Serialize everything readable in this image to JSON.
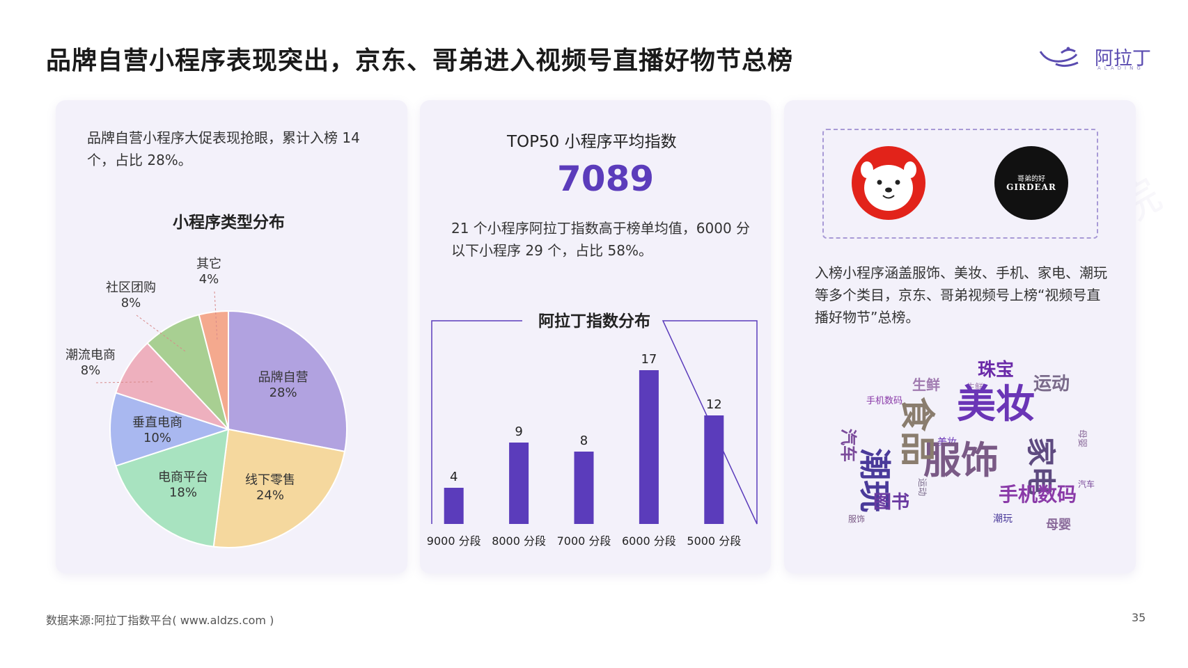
{
  "title": "品牌自营小程序表现突出，京东、哥弟进入视频号直播好物节总榜",
  "logo": {
    "name": "阿拉丁",
    "sub": "ALADING"
  },
  "panel1": {
    "text": "品牌自营小程序大促表现抢眼，累计入榜 14 个，占比 28%。",
    "pie_title": "小程序类型分布"
  },
  "panel2": {
    "header": "TOP50 小程序平均指数",
    "big_number": "7089",
    "text": "21 个小程序阿拉丁指数高于榜单均值，6000 分以下小程序 29 个，占比 58%。",
    "bar_title": "阿拉丁指数分布"
  },
  "panel3": {
    "logo_girdear": "GIRDEAR",
    "logo_girdear_small": "哥弟的好",
    "text": "入榜小程序涵盖服饰、美妆、手机、家电、潮玩等多个类目，京东、哥弟视频号上榜“视频号直播好物节”总榜。"
  },
  "wordcloud": [
    {
      "t": "美妆",
      "c": "#6a35b6"
    },
    {
      "t": "服饰",
      "c": "#7a5a86"
    },
    {
      "t": "食品",
      "c": "#8a7d6e"
    },
    {
      "t": "潮玩",
      "c": "#4a3a9a"
    },
    {
      "t": "家电",
      "c": "#5e4a80"
    },
    {
      "t": "手机数码",
      "c": "#8a3aa8"
    },
    {
      "t": "汽车",
      "c": "#7a4a9a"
    },
    {
      "t": "图书",
      "c": "#6a3aa0"
    },
    {
      "t": "运动",
      "c": "#7a6a8a"
    },
    {
      "t": "珠宝",
      "c": "#6a2aa8"
    },
    {
      "t": "母婴",
      "c": "#8a6a9a"
    },
    {
      "t": "生鲜",
      "c": "#a07ab0"
    }
  ],
  "colors": {
    "bar": "#5b3cbb",
    "accent": "#5b3cbb",
    "panel": "#f3f1fa"
  },
  "chart_data": [
    {
      "type": "pie",
      "title": "小程序类型分布",
      "slices": [
        {
          "label": "品牌自营",
          "value": 28,
          "pct": "28%",
          "color": "#b1a2e0"
        },
        {
          "label": "线下零售",
          "value": 24,
          "pct": "24%",
          "color": "#f5d89e"
        },
        {
          "label": "电商平台",
          "value": 18,
          "pct": "18%",
          "color": "#a8e3c0"
        },
        {
          "label": "垂直电商",
          "value": 10,
          "pct": "10%",
          "color": "#a9b8f0"
        },
        {
          "label": "潮流电商",
          "value": 8,
          "pct": "8%",
          "color": "#eeb0be"
        },
        {
          "label": "社区团购",
          "value": 8,
          "pct": "8%",
          "color": "#a8cf92"
        },
        {
          "label": "其它",
          "value": 4,
          "pct": "4%",
          "color": "#f4a98e"
        }
      ]
    },
    {
      "type": "bar",
      "title": "阿拉丁指数分布",
      "categories": [
        "9000 分段",
        "8000 分段",
        "7000 分段",
        "6000 分段",
        "5000 分段"
      ],
      "values": [
        4,
        9,
        8,
        17,
        12
      ],
      "ylim": [
        0,
        19
      ]
    }
  ],
  "footer": "数据来源:阿拉丁指数平台( www.aldzs.com )",
  "page": "35"
}
